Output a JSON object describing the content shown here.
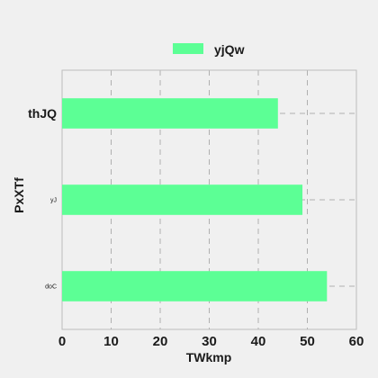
{
  "chart_data": {
    "type": "bar",
    "orientation": "horizontal",
    "categories": [
      "thJQ",
      "yJ",
      "doC"
    ],
    "series": [
      {
        "name": "yjQw",
        "values": [
          44,
          49,
          54
        ],
        "color": "#5cff95"
      }
    ],
    "xlabel": "TWkmp",
    "ylabel": "PxXTf",
    "xlim": [
      0,
      60
    ],
    "xticks": [
      0,
      10,
      20,
      30,
      40,
      50,
      60
    ],
    "grid": true,
    "legend_position": "top-center"
  },
  "colors": {
    "background": "#f0f0f0",
    "grid": "#b0b0b0",
    "axis": "#bdbdbd",
    "text": "#1a1a1a"
  }
}
